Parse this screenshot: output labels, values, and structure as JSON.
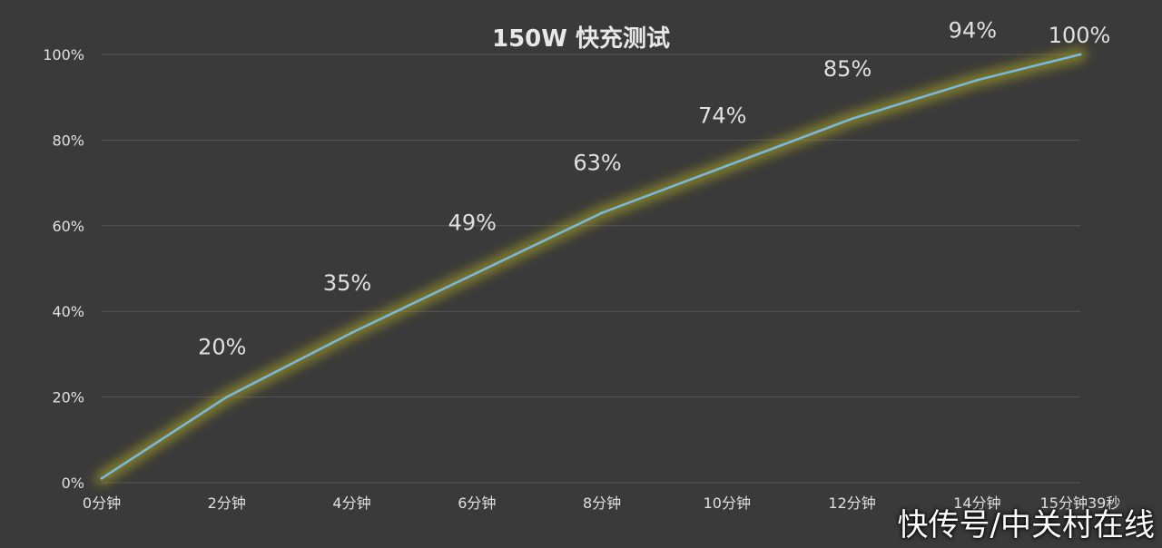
{
  "chart_data": {
    "type": "line",
    "title": "150W 快充测试",
    "categories": [
      "0分钟",
      "2分钟",
      "4分钟",
      "6分钟",
      "8分钟",
      "10分钟",
      "12分钟",
      "14分钟",
      "15分钟39秒"
    ],
    "x_minutes": [
      0,
      2,
      4,
      6,
      8,
      10,
      12,
      14,
      15.65
    ],
    "values": [
      1,
      20,
      35,
      49,
      63,
      74,
      85,
      94,
      100
    ],
    "data_labels": [
      "",
      "20%",
      "35%",
      "49%",
      "63%",
      "74%",
      "85%",
      "94%",
      "100%"
    ],
    "y_ticks": [
      "0%",
      "20%",
      "40%",
      "60%",
      "80%",
      "100%"
    ],
    "ylim": [
      0,
      100
    ],
    "grid": true,
    "colors": {
      "line": "#7ab8e0",
      "glow": "#b8b020",
      "grid": "#555555",
      "text": "#e0e0e0"
    }
  },
  "watermark": "快传号/中关村在线"
}
